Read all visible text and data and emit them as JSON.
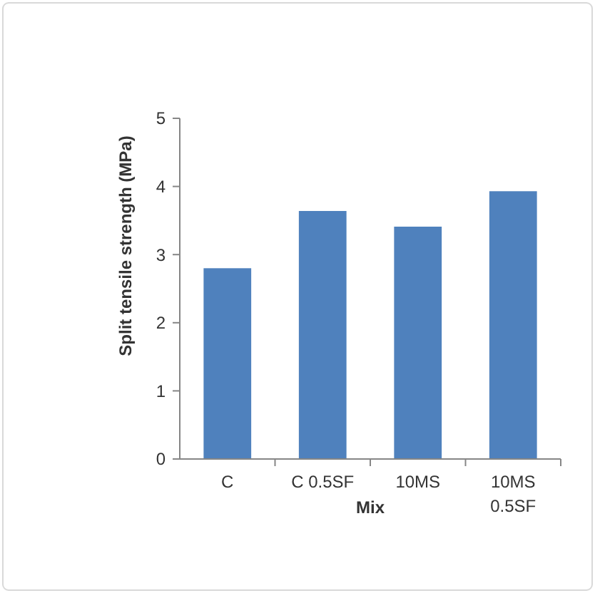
{
  "chart_data": {
    "type": "bar",
    "xlabel": "Mix",
    "ylabel": "Split tensile strength (MPa)",
    "categories": [
      "C",
      "C 0.5SF",
      "10MS",
      "10MS 0.5SF"
    ],
    "values": [
      2.8,
      3.64,
      3.41,
      3.93
    ],
    "color": "#4f81bd",
    "ylim": [
      0,
      5
    ],
    "yticks": [
      0,
      1,
      2,
      3,
      4,
      5
    ],
    "grid": false
  }
}
